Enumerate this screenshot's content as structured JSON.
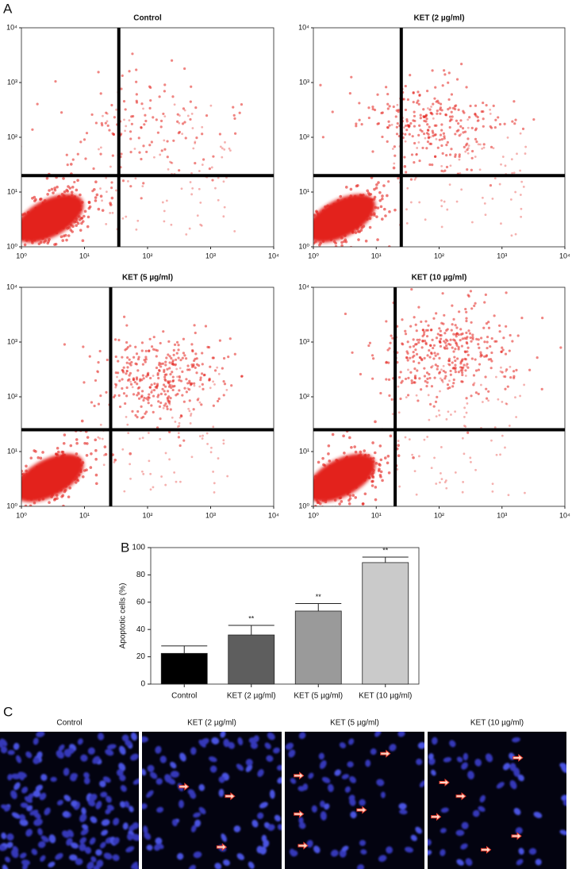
{
  "panel_labels": [
    "A",
    "B",
    "C"
  ],
  "chart_data": [
    {
      "type": "scatter",
      "title": "Control",
      "xscale": "log",
      "yscale": "log",
      "xlim": [
        1,
        10000
      ],
      "ylim": [
        1,
        10000
      ],
      "xticks": [
        {
          "value": 1,
          "label": "10⁰"
        },
        {
          "value": 10,
          "label": "10¹"
        },
        {
          "value": 100,
          "label": "10²"
        },
        {
          "value": 1000,
          "label": "10³"
        },
        {
          "value": 10000,
          "label": "10⁴"
        }
      ],
      "yticks": [
        {
          "value": 1,
          "label": "10⁰"
        },
        {
          "value": 10,
          "label": "10¹"
        },
        {
          "value": 100,
          "label": "10²"
        },
        {
          "value": 1000,
          "label": "10³"
        },
        {
          "value": 10000,
          "label": "10⁴"
        }
      ],
      "gates": {
        "x": 35,
        "y": 20
      },
      "color": "#e3201b"
    },
    {
      "type": "scatter",
      "title": "KET (2 µg/ml)",
      "xscale": "log",
      "yscale": "log",
      "xlim": [
        1,
        10000
      ],
      "ylim": [
        1,
        10000
      ],
      "xticks": [
        {
          "value": 1,
          "label": "10⁰"
        },
        {
          "value": 10,
          "label": "10¹"
        },
        {
          "value": 100,
          "label": "10²"
        },
        {
          "value": 1000,
          "label": "10³"
        },
        {
          "value": 10000,
          "label": "10⁴"
        }
      ],
      "yticks": [
        {
          "value": 1,
          "label": "10⁰"
        },
        {
          "value": 10,
          "label": "10¹"
        },
        {
          "value": 100,
          "label": "10²"
        },
        {
          "value": 1000,
          "label": "10³"
        },
        {
          "value": 10000,
          "label": "10⁴"
        }
      ],
      "gates": {
        "x": 25,
        "y": 20
      },
      "color": "#e3201b"
    },
    {
      "type": "scatter",
      "title": "KET (5 µg/ml)",
      "xscale": "log",
      "yscale": "log",
      "xlim": [
        1,
        10000
      ],
      "ylim": [
        1,
        10000
      ],
      "xticks": [
        {
          "value": 1,
          "label": "10⁰"
        },
        {
          "value": 10,
          "label": "10¹"
        },
        {
          "value": 100,
          "label": "10²"
        },
        {
          "value": 1000,
          "label": "10³"
        },
        {
          "value": 10000,
          "label": "10⁴"
        }
      ],
      "yticks": [
        {
          "value": 1,
          "label": "10⁰"
        },
        {
          "value": 10,
          "label": "10¹"
        },
        {
          "value": 100,
          "label": "10²"
        },
        {
          "value": 1000,
          "label": "10³"
        },
        {
          "value": 10000,
          "label": "10⁴"
        }
      ],
      "gates": {
        "x": 26,
        "y": 25
      },
      "color": "#e3201b"
    },
    {
      "type": "scatter",
      "title": "KET (10 µg/ml)",
      "xscale": "log",
      "yscale": "log",
      "xlim": [
        1,
        10000
      ],
      "ylim": [
        1,
        10000
      ],
      "xticks": [
        {
          "value": 1,
          "label": "10⁰"
        },
        {
          "value": 10,
          "label": "10¹"
        },
        {
          "value": 100,
          "label": "10²"
        },
        {
          "value": 1000,
          "label": "10³"
        },
        {
          "value": 10000,
          "label": "10⁴"
        }
      ],
      "yticks": [
        {
          "value": 1,
          "label": "10⁰"
        },
        {
          "value": 10,
          "label": "10¹"
        },
        {
          "value": 100,
          "label": "10²"
        },
        {
          "value": 1000,
          "label": "10³"
        },
        {
          "value": 10000,
          "label": "10⁴"
        }
      ],
      "gates": {
        "x": 20,
        "y": 25
      },
      "color": "#e3201b"
    },
    {
      "type": "bar",
      "ylabel": "Apoptotic cells (%)",
      "categories": [
        "Control",
        "KET (2 µg/ml)",
        "KET (5 µg/ml)",
        "KET (10 µg/ml)"
      ],
      "values": [
        22.5,
        36,
        53.5,
        89
      ],
      "errors": [
        5.5,
        7,
        5.5,
        4
      ],
      "colors": [
        "#000000",
        "#5e5e5e",
        "#9a9a9a",
        "#cacaca"
      ],
      "significance": [
        null,
        "**",
        "**",
        "**"
      ],
      "ylim": [
        0,
        100
      ],
      "yticks": [
        0,
        20,
        40,
        60,
        80,
        100
      ]
    }
  ],
  "panel_c": {
    "titles": [
      "Control",
      "KET (2 µg/ml)",
      "KET (5 µg/ml)",
      "KET (10 µg/ml)"
    ]
  }
}
